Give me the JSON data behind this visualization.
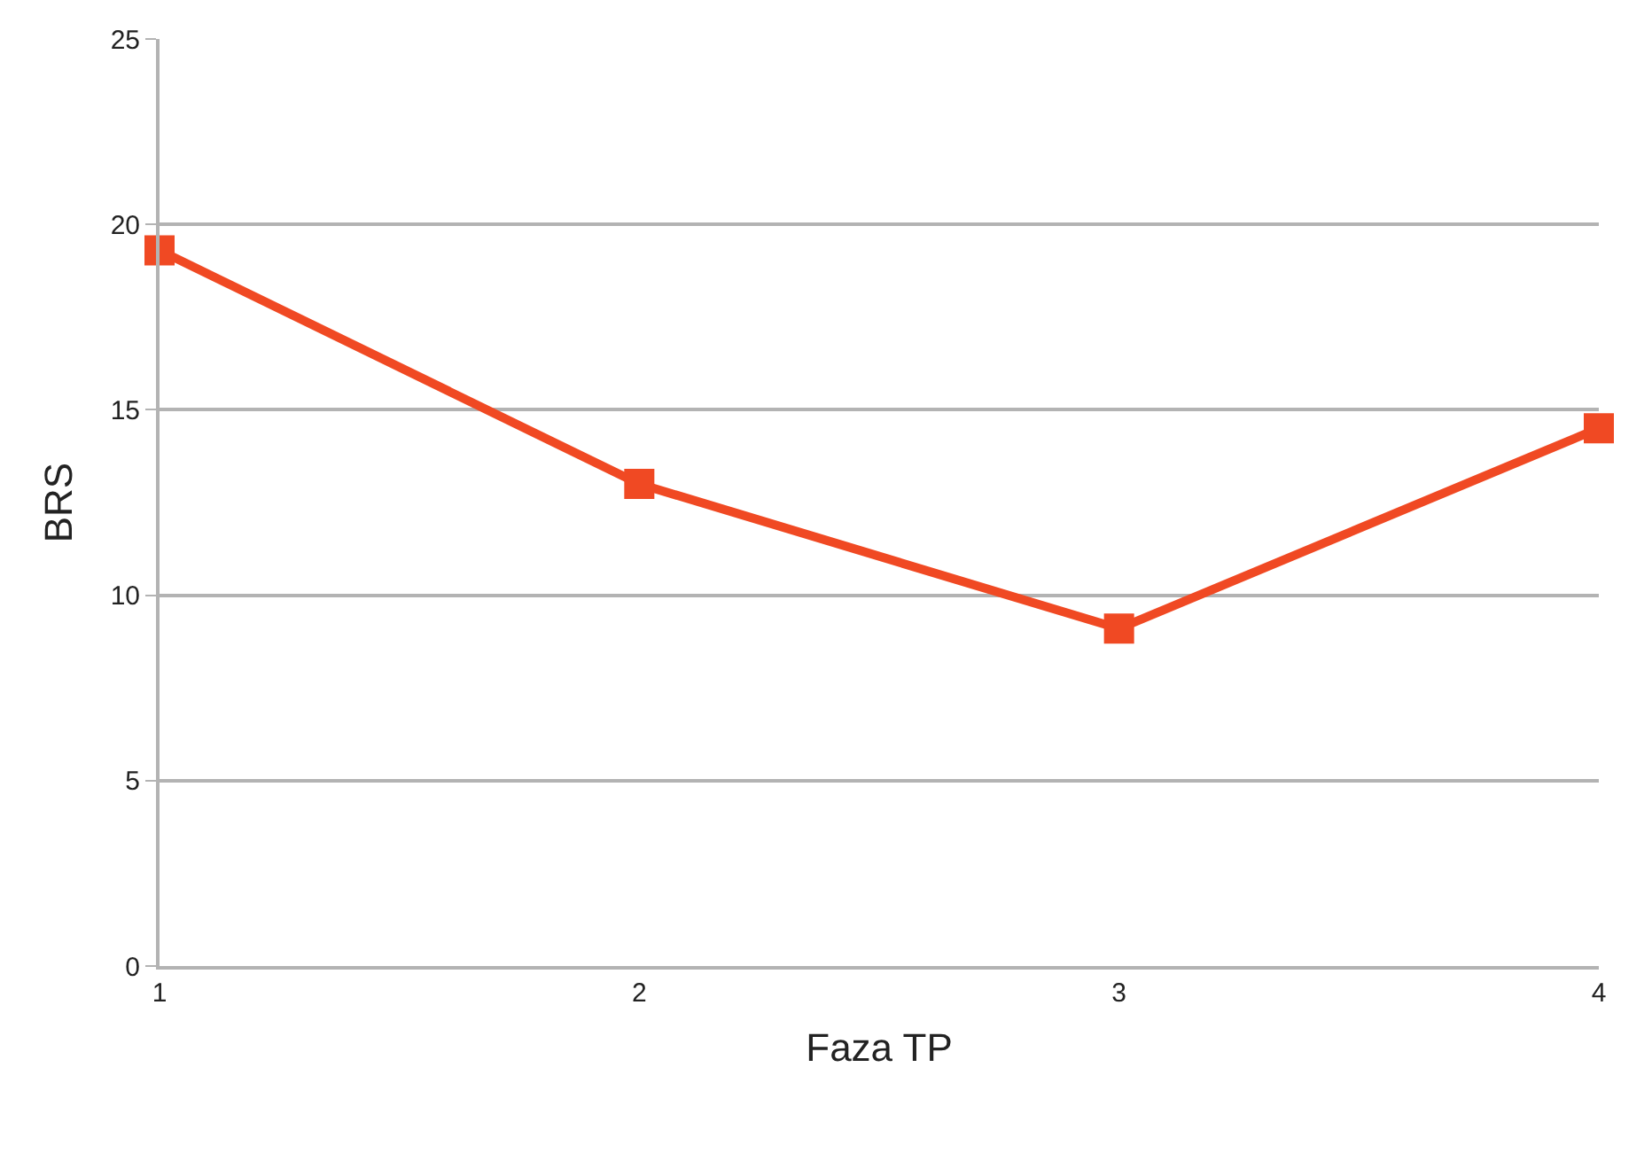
{
  "chart_data": {
    "type": "line",
    "xlabel": "Faza TP",
    "ylabel": "BRS",
    "x": [
      1,
      2,
      3,
      4
    ],
    "series": [
      {
        "color": "#f04923",
        "values": [
          19.3,
          13.0,
          9.1,
          14.5
        ]
      }
    ],
    "xlim": [
      1,
      4
    ],
    "xticks": [
      1,
      2,
      3,
      4
    ],
    "ylim": [
      0,
      25
    ],
    "yticks": [
      0,
      5,
      10,
      15,
      20,
      25
    ],
    "grid": "y",
    "marker": "square",
    "line_style": "solid",
    "legend": false
  }
}
